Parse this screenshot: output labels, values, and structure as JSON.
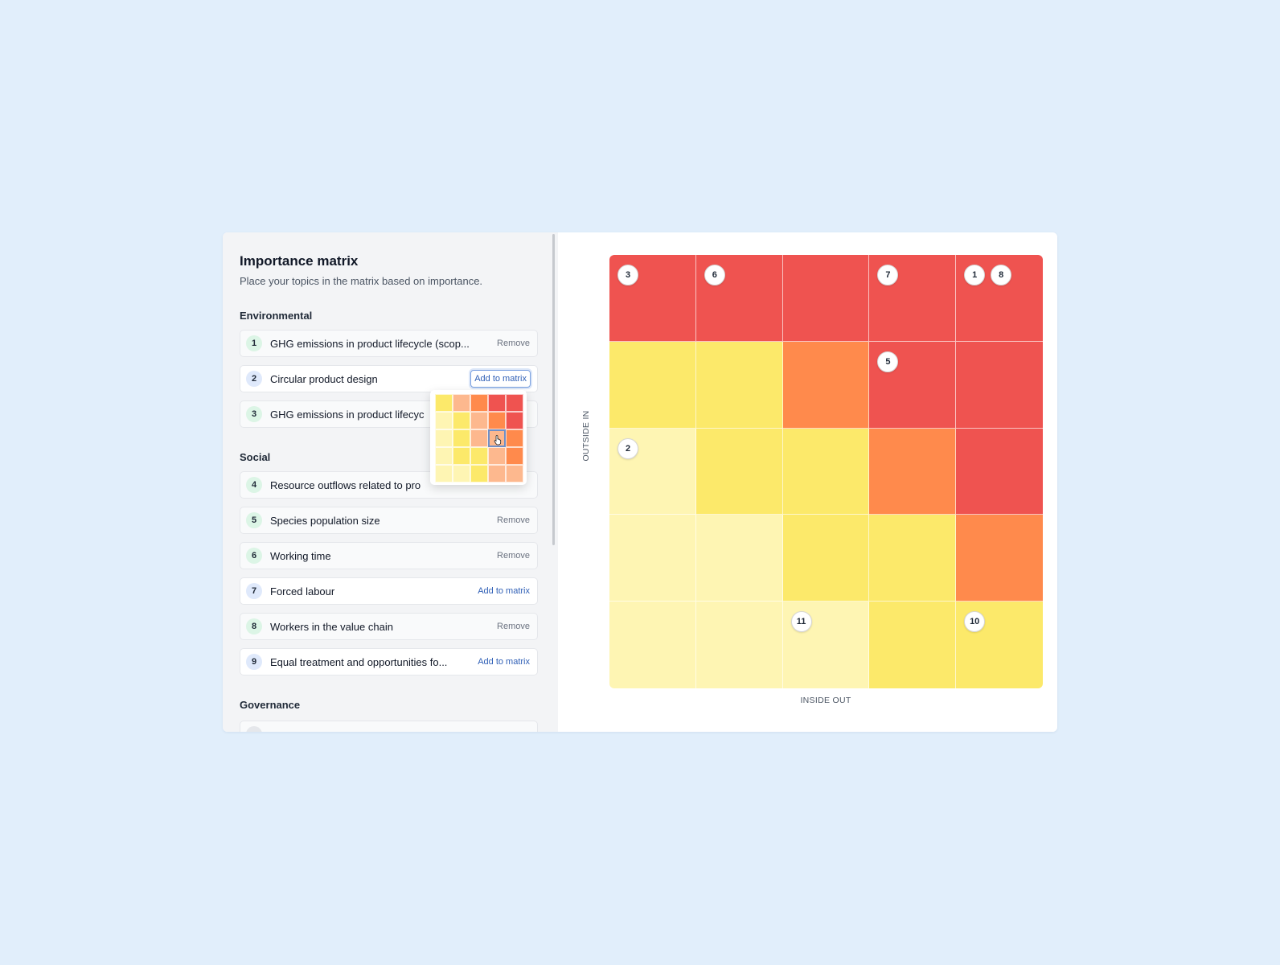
{
  "panel": {
    "title": "Importance matrix",
    "subtitle": "Place your topics in the matrix based on importance."
  },
  "groups": [
    {
      "heading": "Environmental"
    },
    {
      "heading": "Social"
    },
    {
      "heading": "Governance"
    }
  ],
  "topics": [
    {
      "num": "1",
      "label": "GHG emissions in product lifecycle (scop...",
      "action": "Remove"
    },
    {
      "num": "2",
      "label": "Circular product design",
      "action": "Add to matrix"
    },
    {
      "num": "3",
      "label": "GHG emissions in product lifecyc",
      "action": ""
    },
    {
      "num": "4",
      "label": "Resource outflows related to pro",
      "action": ""
    },
    {
      "num": "5",
      "label": "Species population size",
      "action": "Remove"
    },
    {
      "num": "6",
      "label": "Working time",
      "action": "Remove"
    },
    {
      "num": "7",
      "label": "Forced labour",
      "action": "Add to matrix"
    },
    {
      "num": "8",
      "label": "Workers in the value chain",
      "action": "Remove"
    },
    {
      "num": "9",
      "label": "Equal treatment and opportunities fo...",
      "action": "Add to matrix"
    },
    {
      "num": "",
      "label": "",
      "action": ""
    }
  ],
  "matrix": {
    "x_axis_label": "INSIDE OUT",
    "y_axis_label": "OUTSIDE IN",
    "colors": {
      "red": "#ef5350",
      "orange": "#ff8a4c",
      "yellow": "#fce96a",
      "light_yellow": "#fef5b3",
      "peach": "#fdb88e"
    },
    "cell_colors": [
      [
        "red",
        "red",
        "red",
        "red",
        "red"
      ],
      [
        "yellow",
        "yellow",
        "orange",
        "red",
        "red"
      ],
      [
        "light_yellow",
        "yellow",
        "yellow",
        "orange",
        "red"
      ],
      [
        "light_yellow",
        "light_yellow",
        "yellow",
        "yellow",
        "orange"
      ],
      [
        "light_yellow",
        "light_yellow",
        "light_yellow",
        "yellow",
        "yellow"
      ]
    ],
    "markers": [
      {
        "num": "3",
        "row": 0,
        "col": 0,
        "slot": 0
      },
      {
        "num": "6",
        "row": 0,
        "col": 1,
        "slot": 0
      },
      {
        "num": "7",
        "row": 0,
        "col": 3,
        "slot": 0
      },
      {
        "num": "1",
        "row": 0,
        "col": 4,
        "slot": 0
      },
      {
        "num": "8",
        "row": 0,
        "col": 4,
        "slot": 1
      },
      {
        "num": "5",
        "row": 1,
        "col": 3,
        "slot": 0
      },
      {
        "num": "2",
        "row": 2,
        "col": 0,
        "slot": 0
      },
      {
        "num": "11",
        "row": 4,
        "col": 2,
        "slot": 0
      },
      {
        "num": "10",
        "row": 4,
        "col": 4,
        "slot": 0
      }
    ]
  },
  "picker": {
    "cell_colors": [
      [
        "yellow",
        "peach",
        "orange",
        "red",
        "red"
      ],
      [
        "light_yellow",
        "yellow",
        "peach",
        "orange",
        "red"
      ],
      [
        "light_yellow",
        "yellow",
        "peach",
        "peach",
        "orange"
      ],
      [
        "light_yellow",
        "yellow",
        "yellow",
        "peach",
        "orange"
      ],
      [
        "light_yellow",
        "light_yellow",
        "yellow",
        "peach",
        "peach"
      ]
    ],
    "hover_cell": {
      "row": 2,
      "col": 3
    }
  }
}
